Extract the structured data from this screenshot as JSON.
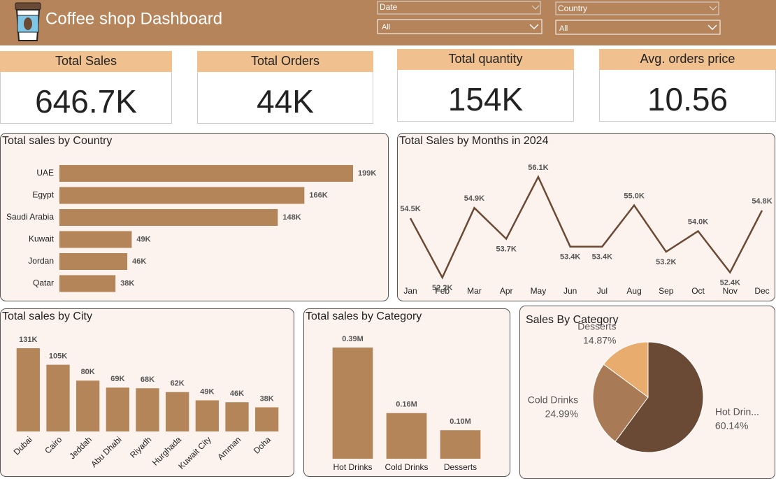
{
  "header": {
    "title": "Coffee shop Dashboard"
  },
  "filters": [
    {
      "label": "Date",
      "value": "All"
    },
    {
      "label": "Country",
      "value": "All"
    }
  ],
  "kpis": [
    {
      "label": "Total Sales",
      "value": "646.7K"
    },
    {
      "label": "Total Orders",
      "value": "44K"
    },
    {
      "label": "Total quantity",
      "value": "154K"
    },
    {
      "label": "Avg. orders price",
      "value": "10.56"
    }
  ],
  "chart_data": [
    {
      "type": "bar",
      "orientation": "horizontal",
      "title": "Total sales by Country",
      "color": "#b5855a",
      "categories": [
        "UAE",
        "Egypt",
        "Saudi Arabia",
        "Kuwait",
        "Jordan",
        "Qatar"
      ],
      "values": [
        199000,
        166000,
        148000,
        49000,
        46000,
        38000
      ],
      "value_labels": [
        "199K",
        "166K",
        "148K",
        "49K",
        "46K",
        "38K"
      ]
    },
    {
      "type": "line",
      "title": "Total Sales by Months in 2024",
      "color": "#6b4a35",
      "categories": [
        "Jan",
        "Feb",
        "Mar",
        "Apr",
        "May",
        "Jun",
        "Jul",
        "Aug",
        "Sep",
        "Oct",
        "Nov",
        "Dec"
      ],
      "values": [
        54500,
        52200,
        54900,
        53700,
        56100,
        53400,
        53400,
        55000,
        53200,
        54000,
        52400,
        54800
      ],
      "value_labels": [
        "54.5K",
        "52.2K",
        "54.9K",
        "53.7K",
        "56.1K",
        "53.4K",
        "53.4K",
        "55.0K",
        "53.2K",
        "54.0K",
        "52.4K",
        "54.8K"
      ]
    },
    {
      "type": "bar",
      "title": "Total sales by City",
      "color": "#b5855a",
      "label_rotation": -45,
      "categories": [
        "Dubai",
        "Cairo",
        "Jeddah",
        "Abu Dhabi",
        "Riyadh",
        "Hurghada",
        "Kuwait City",
        "Amman",
        "Doha"
      ],
      "values": [
        131000,
        105000,
        80000,
        69000,
        68000,
        62000,
        49000,
        46000,
        38000
      ],
      "value_labels": [
        "131K",
        "105K",
        "80K",
        "69K",
        "68K",
        "62K",
        "49K",
        "46K",
        "38K"
      ]
    },
    {
      "type": "bar",
      "title": "Total sales by Category",
      "color": "#b5855a",
      "categories": [
        "Hot Drinks",
        "Cold Drinks",
        "Desserts"
      ],
      "values": [
        390000,
        160000,
        100000
      ],
      "value_labels": [
        "0.39M",
        "0.16M",
        "0.10M"
      ]
    },
    {
      "type": "pie",
      "title": "Sales By Category",
      "categories": [
        "Hot Drin...",
        "Cold Drinks",
        "Desserts"
      ],
      "values": [
        60.14,
        24.99,
        14.87
      ],
      "value_labels": [
        "60.14%",
        "24.99%",
        "14.87%"
      ],
      "colors": [
        "#6b4a35",
        "#a87a55",
        "#e8ad6e"
      ]
    }
  ]
}
